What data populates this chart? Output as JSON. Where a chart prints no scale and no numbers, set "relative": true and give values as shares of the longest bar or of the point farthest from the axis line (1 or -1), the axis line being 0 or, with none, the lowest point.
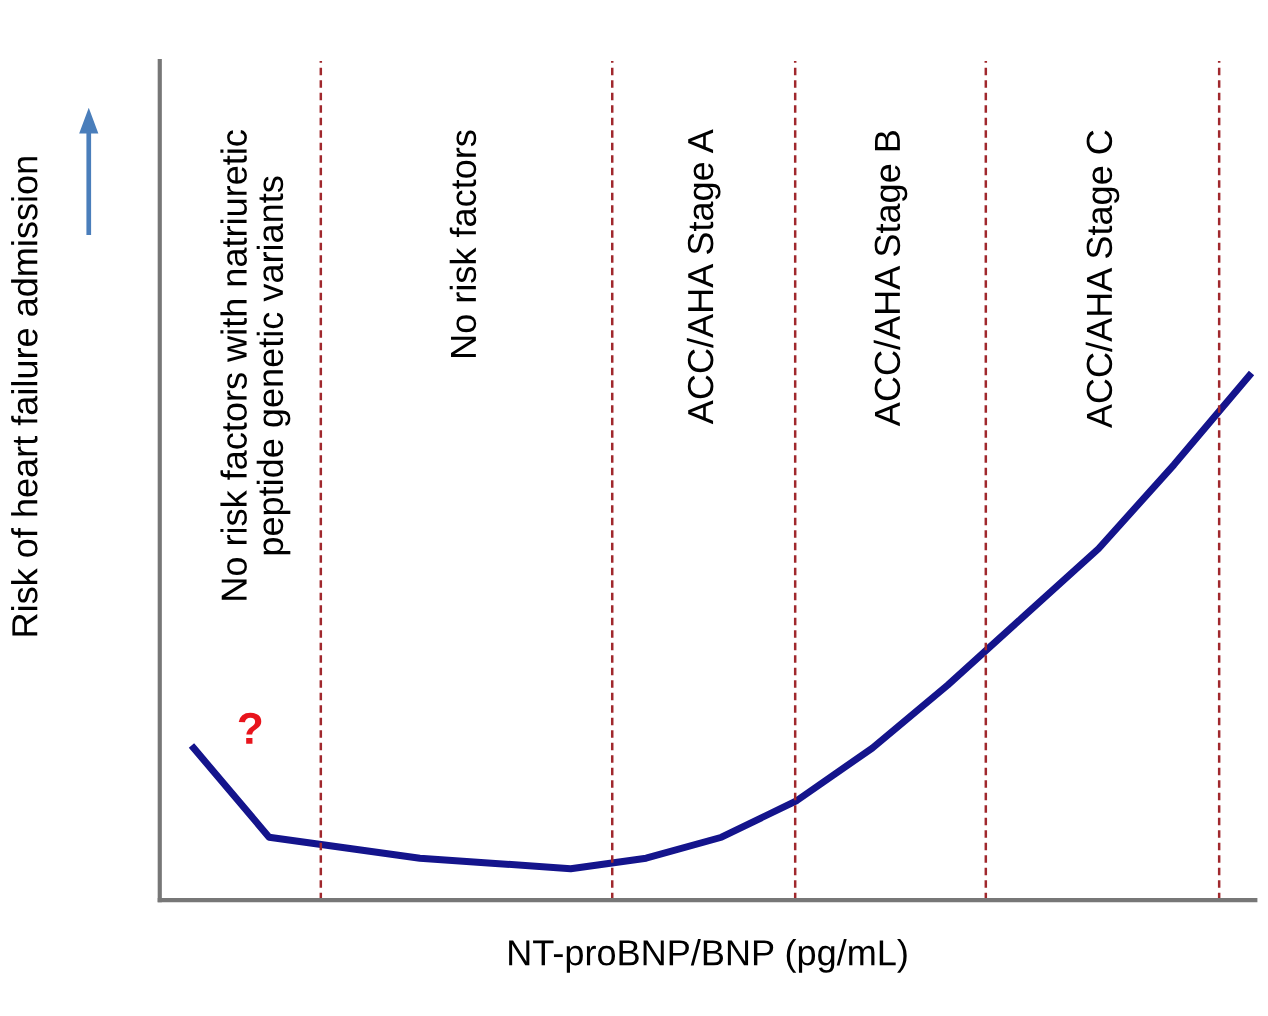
{
  "chart_data": {
    "type": "line",
    "relative": true,
    "xlabel": "NT-proBNP/BNP (pg/mL)",
    "ylabel": "Risk of heart failure admission",
    "categories": [
      null,
      null,
      null,
      null,
      null,
      null,
      null,
      null,
      null,
      null,
      null,
      null,
      null,
      null,
      null
    ],
    "series": [
      {
        "color": "#14148c",
        "values": [
          0.29,
          0.12,
          0.1,
          0.08,
          0.07,
          0.06,
          0.08,
          0.12,
          0.19,
          0.29,
          0.41,
          0.54,
          0.67,
          0.83,
          1.0
        ]
      }
    ],
    "annotations": [
      "No risk factors with natriuretic\npeptide genetic variants",
      "No risk factors",
      "ACC/AHA Stage A",
      "ACC/AHA Stage B",
      "ACC/AHA Stage C",
      "?"
    ],
    "grid": false,
    "marker": "none",
    "line_style": "solid",
    "tick_labels": false
  }
}
